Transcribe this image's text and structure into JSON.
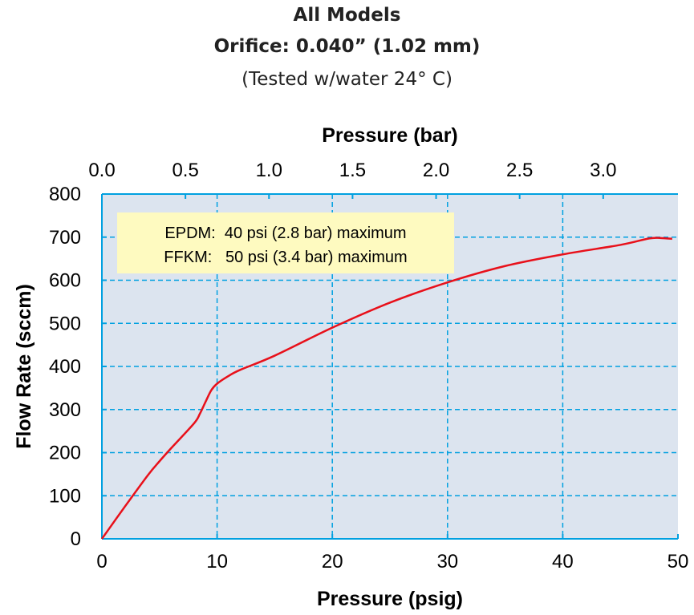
{
  "chart_data": {
    "type": "line",
    "title_lines": [
      "All Models",
      "Orifice: 0.040” (1.02 mm)",
      "(Tested w/water 24° C)"
    ],
    "xlabel": "Pressure (psig)",
    "x2label": "Pressure (bar)",
    "ylabel": "Flow Rate (sccm)",
    "xlim": [
      0,
      50
    ],
    "x2lim": [
      0,
      3.4474
    ],
    "ylim": [
      0,
      800
    ],
    "x_ticks": [
      0,
      10,
      20,
      30,
      40,
      50
    ],
    "x2_ticks": [
      "0.0",
      "0.5",
      "1.0",
      "1.5",
      "2.0",
      "2.5",
      "3.0"
    ],
    "x2_tick_values": [
      0,
      0.5,
      1.0,
      1.5,
      2.0,
      2.5,
      3.0
    ],
    "y_ticks": [
      0,
      100,
      200,
      300,
      400,
      500,
      600,
      700,
      800
    ],
    "grid": true,
    "plot_background": "#dce4ef",
    "grid_color": "#00a0e0",
    "series": [
      {
        "color": "#e8101a",
        "x": [
          0,
          2,
          4,
          5,
          6,
          8,
          8.5,
          9,
          9.5,
          10,
          11,
          12,
          15,
          20,
          25,
          30,
          35,
          40,
          45,
          47.5,
          48.5,
          49.5
        ],
        "y": [
          0,
          75,
          148,
          180,
          210,
          268,
          290,
          318,
          345,
          360,
          378,
          392,
          425,
          490,
          548,
          595,
          633,
          660,
          682,
          697,
          698,
          696
        ]
      }
    ],
    "annotation": {
      "lines": [
        "EPDM:  40 psi (2.8 bar) maximum",
        "FFKM:   50 psi (3.4 bar) maximum"
      ],
      "background": "#fefac0"
    }
  }
}
